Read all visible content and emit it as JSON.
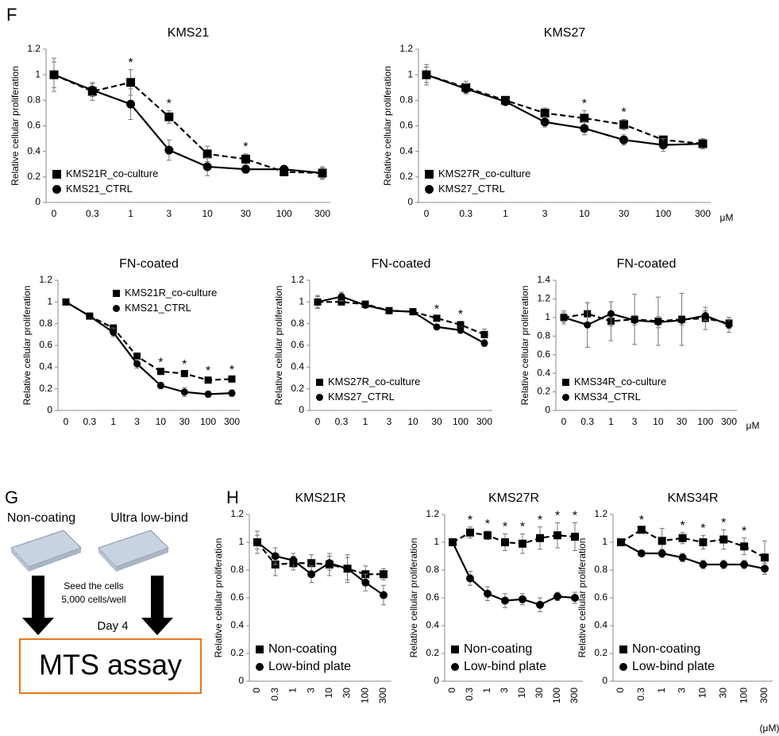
{
  "labels": {
    "f": "F",
    "g": "G",
    "h": "H"
  },
  "diagram": {
    "left_plate": "Non-coating",
    "right_plate": "Ultra low-bind",
    "step": "Seed the cells",
    "density": "5,000 cells/well",
    "day": "Day 4",
    "assay": "MTS assay"
  },
  "chart_data": [
    {
      "type": "line",
      "title": "KMS21",
      "y_label": "Relative cellular proliferation",
      "categories": [
        "0",
        "0.3",
        "1",
        "3",
        "10",
        "30",
        "100",
        "300"
      ],
      "ylim": [
        0,
        1.2
      ],
      "yticks": [
        0,
        0.2,
        0.4,
        0.6,
        0.8,
        1,
        1.2
      ],
      "legend": "lower left",
      "series": [
        {
          "name": "KMS21R_co-culture",
          "color": "#000000",
          "marker": "square",
          "dashed": true,
          "values": [
            1,
            0.87,
            0.94,
            0.67,
            0.38,
            0.34,
            0.24,
            0.23
          ],
          "errors": [
            0.13,
            0.07,
            0.1,
            0.05,
            0.06,
            0.04,
            0.03,
            0.04
          ]
        },
        {
          "name": "KMS21_CTRL",
          "color": "#000000",
          "marker": "circle",
          "dashed": false,
          "values": [
            1,
            0.88,
            0.77,
            0.41,
            0.28,
            0.26,
            0.26,
            0.23
          ],
          "errors": [
            0.1,
            0.05,
            0.12,
            0.08,
            0.07,
            0.03,
            0.03,
            0.05
          ]
        }
      ],
      "annotations": [
        {
          "text": "*",
          "x": "1"
        },
        {
          "text": "*",
          "x": "3"
        },
        {
          "text": "*",
          "x": "30"
        }
      ]
    },
    {
      "type": "line",
      "title": "KMS27",
      "y_label": "Relative cellular proliferation",
      "x_unit": "μM",
      "categories": [
        "0",
        "0.3",
        "1",
        "3",
        "10",
        "30",
        "100",
        "300"
      ],
      "ylim": [
        0,
        1.2
      ],
      "yticks": [
        0,
        0.2,
        0.4,
        0.6,
        0.8,
        1,
        1.2
      ],
      "legend": "lower left",
      "series": [
        {
          "name": "KMS27R_co-culture",
          "color": "#000000",
          "marker": "square",
          "dashed": true,
          "values": [
            1,
            0.9,
            0.8,
            0.7,
            0.66,
            0.61,
            0.49,
            0.46
          ],
          "errors": [
            0.08,
            0.05,
            0.03,
            0.04,
            0.06,
            0.04,
            0.03,
            0.04
          ]
        },
        {
          "name": "KMS27_CTRL",
          "color": "#000000",
          "marker": "circle",
          "dashed": false,
          "values": [
            1,
            0.89,
            0.79,
            0.63,
            0.58,
            0.49,
            0.45,
            0.46
          ],
          "errors": [
            0.06,
            0.04,
            0.03,
            0.04,
            0.05,
            0.04,
            0.05,
            0.03
          ]
        }
      ],
      "annotations": [
        {
          "text": "*",
          "x": "10"
        },
        {
          "text": "*",
          "x": "30"
        }
      ]
    },
    {
      "type": "line",
      "title": "FN-coated",
      "y_label": "Relative cellular proliferation",
      "categories": [
        "0",
        "0.3",
        "1",
        "3",
        "10",
        "30",
        "100",
        "300"
      ],
      "ylim": [
        0,
        1.2
      ],
      "yticks": [
        0,
        0.2,
        0.4,
        0.6,
        0.8,
        1,
        1.2
      ],
      "legend": "upper right",
      "series": [
        {
          "name": "KMS21R_co-culture",
          "color": "#000000",
          "marker": "square",
          "dashed": true,
          "values": [
            1,
            0.87,
            0.76,
            0.5,
            0.36,
            0.34,
            0.28,
            0.29
          ],
          "errors": [
            0.02,
            0.02,
            0.03,
            0.03,
            0.02,
            0.02,
            0.02,
            0.02
          ]
        },
        {
          "name": "KMS21_CTRL",
          "color": "#000000",
          "marker": "circle",
          "dashed": false,
          "values": [
            1,
            0.87,
            0.72,
            0.43,
            0.23,
            0.17,
            0.15,
            0.16
          ],
          "errors": [
            0.02,
            0.02,
            0.04,
            0.04,
            0.03,
            0.04,
            0.03,
            0.03
          ]
        }
      ],
      "annotations": [
        {
          "text": "*",
          "x": "10"
        },
        {
          "text": "*",
          "x": "30"
        },
        {
          "text": "*",
          "x": "100"
        },
        {
          "text": "*",
          "x": "300"
        }
      ]
    },
    {
      "type": "line",
      "title": "FN-coated",
      "y_label": "Relative cellular proliferation",
      "categories": [
        "0",
        "0.3",
        "1",
        "3",
        "10",
        "30",
        "100",
        "300"
      ],
      "ylim": [
        0,
        1.2
      ],
      "yticks": [
        0,
        0.2,
        0.4,
        0.6,
        0.8,
        1,
        1.2
      ],
      "legend": "lower left",
      "series": [
        {
          "name": "KMS27R_co-culture",
          "color": "#000000",
          "marker": "square",
          "dashed": true,
          "values": [
            1,
            1,
            0.98,
            0.92,
            0.91,
            0.85,
            0.79,
            0.7
          ],
          "errors": [
            0.05,
            0.03,
            0.02,
            0.02,
            0.02,
            0.02,
            0.03,
            0.05
          ]
        },
        {
          "name": "KMS27_CTRL",
          "color": "#000000",
          "marker": "circle",
          "dashed": false,
          "values": [
            1,
            1.05,
            0.97,
            0.92,
            0.91,
            0.77,
            0.74,
            0.62
          ],
          "errors": [
            0.06,
            0.04,
            0.02,
            0.02,
            0.02,
            0.02,
            0.03,
            0.03
          ]
        }
      ],
      "annotations": [
        {
          "text": "*",
          "x": "30"
        },
        {
          "text": "*",
          "x": "100"
        }
      ]
    },
    {
      "type": "line",
      "title": "FN-coated",
      "y_label": "Relative cellular proliferation",
      "x_unit": "μM",
      "categories": [
        "0",
        "0.3",
        "1",
        "3",
        "10",
        "30",
        "100",
        "300"
      ],
      "ylim": [
        0,
        1.4
      ],
      "yticks": [
        0,
        0.2,
        0.4,
        0.6,
        0.8,
        1,
        1.2,
        1.4
      ],
      "legend": "lower left",
      "series": [
        {
          "name": "KMS34R_co-culture",
          "color": "#000000",
          "marker": "square",
          "dashed": true,
          "values": [
            1,
            1.04,
            0.96,
            0.98,
            0.96,
            0.98,
            0.99,
            0.94
          ],
          "errors": [
            0.07,
            0.12,
            0.21,
            0.27,
            0.26,
            0.28,
            0.12,
            0.06
          ]
        },
        {
          "name": "KMS34_CTRL",
          "color": "#000000",
          "marker": "circle",
          "dashed": false,
          "values": [
            1,
            0.92,
            1.04,
            0.97,
            0.95,
            0.97,
            1.02,
            0.92
          ],
          "errors": [
            0.05,
            0.24,
            0.13,
            0.05,
            0.06,
            0.05,
            0.05,
            0.08
          ]
        }
      ]
    },
    {
      "type": "line",
      "title": "KMS21R",
      "y_label": "Relative cellular proliferation",
      "xtick_rotation": 90,
      "categories": [
        "0",
        "0.3",
        "1",
        "3",
        "10",
        "30",
        "100",
        "300"
      ],
      "ylim": [
        0,
        1.2
      ],
      "yticks": [
        0,
        0.2,
        0.4,
        0.6,
        0.8,
        1,
        1.2
      ],
      "legend": "lower left",
      "series": [
        {
          "name": "Non-coating",
          "color": "#000000",
          "marker": "square",
          "dashed": true,
          "values": [
            1,
            0.84,
            0.85,
            0.85,
            0.84,
            0.81,
            0.77,
            0.77
          ],
          "errors": [
            0.08,
            0.08,
            0.05,
            0.06,
            0.08,
            0.1,
            0.06,
            0.04
          ]
        },
        {
          "name": "Low-bind plate",
          "color": "#000000",
          "marker": "circle",
          "dashed": false,
          "values": [
            1,
            0.9,
            0.87,
            0.77,
            0.85,
            0.81,
            0.71,
            0.62
          ],
          "errors": [
            0.05,
            0.06,
            0.05,
            0.06,
            0.05,
            0.08,
            0.06,
            0.07
          ]
        }
      ]
    },
    {
      "type": "line",
      "title": "KMS27R",
      "y_label": "Relative cellular proliferation",
      "xtick_rotation": 90,
      "categories": [
        "0",
        "0.3",
        "1",
        "3",
        "10",
        "30",
        "100",
        "300"
      ],
      "ylim": [
        0,
        1.2
      ],
      "yticks": [
        0,
        0.2,
        0.4,
        0.6,
        0.8,
        1,
        1.2
      ],
      "legend": "lower left",
      "series": [
        {
          "name": "Non-coating",
          "color": "#000000",
          "marker": "square",
          "dashed": true,
          "values": [
            1,
            1.07,
            1.05,
            1,
            0.99,
            1.03,
            1.05,
            1.04
          ],
          "errors": [
            0.02,
            0.04,
            0.03,
            0.06,
            0.07,
            0.08,
            0.09,
            0.1
          ]
        },
        {
          "name": "Low-bind plate",
          "color": "#000000",
          "marker": "circle",
          "dashed": false,
          "values": [
            1,
            0.74,
            0.63,
            0.58,
            0.59,
            0.55,
            0.61,
            0.6
          ],
          "errors": [
            0.02,
            0.05,
            0.05,
            0.05,
            0.04,
            0.05,
            0.03,
            0.04
          ]
        }
      ],
      "annotations": [
        {
          "text": "*",
          "x": "0.3"
        },
        {
          "text": "*",
          "x": "1"
        },
        {
          "text": "*",
          "x": "3"
        },
        {
          "text": "*",
          "x": "10"
        },
        {
          "text": "*",
          "x": "30"
        },
        {
          "text": "*",
          "x": "100"
        },
        {
          "text": "*",
          "x": "300"
        }
      ]
    },
    {
      "type": "line",
      "title": "KMS34R",
      "y_label": "Relative cellular proliferation",
      "x_unit": "(μM)",
      "xtick_rotation": 90,
      "categories": [
        "0",
        "0.3",
        "1",
        "3",
        "10",
        "30",
        "100",
        "300"
      ],
      "ylim": [
        0,
        1.2
      ],
      "yticks": [
        0,
        0.2,
        0.4,
        0.6,
        0.8,
        1,
        1.2
      ],
      "legend": "lower left",
      "series": [
        {
          "name": "Non-coating",
          "color": "#000000",
          "marker": "square",
          "dashed": true,
          "values": [
            1,
            1.09,
            1.01,
            1.03,
            1,
            1.02,
            0.97,
            0.89
          ],
          "errors": [
            0.02,
            0.02,
            0.09,
            0.04,
            0.05,
            0.07,
            0.06,
            0.12
          ]
        },
        {
          "name": "Low-bind plate",
          "color": "#000000",
          "marker": "circle",
          "dashed": false,
          "values": [
            1,
            0.92,
            0.92,
            0.89,
            0.84,
            0.84,
            0.84,
            0.81
          ],
          "errors": [
            0.02,
            0.02,
            0.03,
            0.03,
            0.03,
            0.03,
            0.03,
            0.04
          ]
        }
      ],
      "annotations": [
        {
          "text": "*",
          "x": "0.3"
        },
        {
          "text": "*",
          "x": "3"
        },
        {
          "text": "*",
          "x": "10"
        },
        {
          "text": "*",
          "x": "30"
        },
        {
          "text": "*",
          "x": "100"
        }
      ]
    }
  ]
}
